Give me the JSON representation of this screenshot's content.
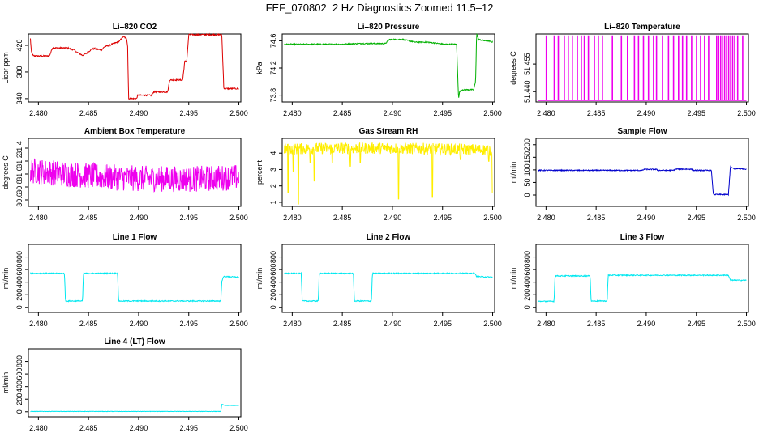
{
  "figure": {
    "title": "FEF_070802  2 Hz Diagnostics Zoomed 11.5–12"
  },
  "chart_data": [
    {
      "type": "line",
      "title": "Li–820 CO2",
      "ylabel": "Licor ppm",
      "xlabel": "",
      "xlim": [
        2.479,
        2.5002
      ],
      "ylim": [
        335,
        437
      ],
      "xticks": [
        "2.480",
        "2.485",
        "2.490",
        "2.495",
        "2.500"
      ],
      "xtick_values": [
        2.48,
        2.485,
        2.49,
        2.495,
        2.5
      ],
      "yticks": [
        "340",
        "380",
        "420"
      ],
      "ytick_values": [
        340,
        380,
        420
      ],
      "color": "#dd0000",
      "noise": 1,
      "series": [
        {
          "x": [
            2.4792,
            2.4793,
            2.4795,
            2.4797,
            2.4811,
            2.4814,
            2.4829,
            2.4833,
            2.4836,
            2.4838,
            2.4844,
            2.4848,
            2.4853,
            2.4856,
            2.4863,
            2.4866,
            2.4871,
            2.4874,
            2.4881,
            2.4883,
            2.4885,
            2.4888,
            2.4889,
            2.489,
            2.4898,
            2.4899,
            2.4913,
            2.4915,
            2.4929,
            2.4931,
            2.4944,
            2.4946,
            2.4948,
            2.495,
            2.4983,
            2.4985,
            2.5
          ],
          "y": [
            430,
            410,
            404,
            404,
            404,
            416,
            416,
            414,
            413,
            410,
            405,
            408,
            414,
            415,
            413,
            418,
            420,
            422,
            426,
            431,
            433,
            430,
            420,
            340,
            340,
            345,
            345,
            350,
            350,
            368,
            368,
            396,
            396,
            436,
            436,
            355,
            355
          ]
        }
      ]
    },
    {
      "type": "line",
      "title": "Li–820 Pressure",
      "ylabel": "kPa",
      "xlabel": "",
      "xlim": [
        2.479,
        2.5002
      ],
      "ylim": [
        73.7,
        74.7
      ],
      "xticks": [
        "2.480",
        "2.485",
        "2.490",
        "2.495",
        "2.500"
      ],
      "xtick_values": [
        2.48,
        2.485,
        2.49,
        2.495,
        2.5
      ],
      "yticks": [
        "73.8",
        "74.2",
        "74.6"
      ],
      "ytick_values": [
        73.8,
        74.2,
        74.6
      ],
      "color": "#00b000",
      "noise": 0.008,
      "series": [
        {
          "x": [
            2.4792,
            2.4849,
            2.4868,
            2.4893,
            2.4897,
            2.491,
            2.4923,
            2.4935,
            2.4952,
            2.4964,
            2.4966,
            2.4967,
            2.497,
            2.4981,
            2.4983,
            2.4984,
            2.4986,
            2.4992,
            2.4995,
            2.5
          ],
          "y": [
            74.55,
            74.55,
            74.56,
            74.56,
            74.62,
            74.62,
            74.58,
            74.58,
            74.55,
            74.55,
            73.75,
            73.85,
            73.88,
            73.88,
            74.0,
            74.7,
            74.62,
            74.6,
            74.6,
            74.58
          ]
        }
      ]
    },
    {
      "type": "line",
      "title": "Li–820 Temperature",
      "ylabel": "degrees C",
      "xlabel": "",
      "xlim": [
        2.479,
        2.5002
      ],
      "ylim": [
        51.4344,
        51.4713
      ],
      "xticks": [
        "2.480",
        "2.485",
        "2.490",
        "2.495",
        "2.500"
      ],
      "xtick_values": [
        2.48,
        2.485,
        2.49,
        2.495,
        2.5
      ],
      "yticks": [
        "51.440",
        "51.455"
      ],
      "ytick_values": [
        51.44,
        51.455
      ],
      "color": "#ee00ee",
      "noise": 0,
      "base": 51.4352,
      "high": 51.4703,
      "spikes": [
        2.48,
        2.4808,
        2.4812,
        2.4818,
        2.4822,
        2.4826,
        2.4831,
        2.4835,
        2.4838,
        2.4842,
        2.4848,
        2.4852,
        2.4856,
        2.4866,
        2.4875,
        2.4881,
        2.4888,
        2.4892,
        2.4897,
        2.4902,
        2.4907,
        2.491,
        2.4916,
        2.4922,
        2.4927,
        2.4932,
        2.4936,
        2.494,
        2.4945,
        2.495,
        2.4954,
        2.4958,
        2.4962,
        2.497,
        2.4972,
        2.4974,
        2.4976,
        2.4978,
        2.498,
        2.4982,
        2.4984,
        2.4986,
        2.4988,
        2.4991,
        2.4996
      ]
    },
    {
      "type": "line",
      "title": "Ambient Box Temperature",
      "ylabel": "degrees C",
      "xlabel": "",
      "xlim": [
        2.479,
        2.5002
      ],
      "ylim": [
        30.5,
        31.55
      ],
      "xticks": [
        "2.480",
        "2.485",
        "2.490",
        "2.495",
        "2.500"
      ],
      "xtick_values": [
        2.48,
        2.485,
        2.49,
        2.495,
        2.5
      ],
      "yticks": [
        "30.6",
        "30.8",
        "31.0",
        "31.2",
        "31.4"
      ],
      "ytick_values": [
        30.6,
        30.8,
        31.0,
        31.2,
        31.4
      ],
      "color": "#ee00ee",
      "noise": 0.2,
      "series": [
        {
          "x": [
            2.4792,
            2.483,
            2.487,
            2.49,
            2.495,
            2.5
          ],
          "y": [
            31.05,
            31.0,
            30.95,
            30.93,
            30.92,
            30.95
          ]
        }
      ]
    },
    {
      "type": "line",
      "title": "Gas Stream RH",
      "ylabel": "percent",
      "xlabel": "",
      "xlim": [
        2.479,
        2.5002
      ],
      "ylim": [
        0.75,
        4.9
      ],
      "xticks": [
        "2.480",
        "2.485",
        "2.490",
        "2.495",
        "2.500"
      ],
      "xtick_values": [
        2.48,
        2.485,
        2.49,
        2.495,
        2.5
      ],
      "yticks": [
        "1",
        "2",
        "3",
        "4"
      ],
      "ytick_values": [
        1,
        2,
        3,
        4
      ],
      "color": "#ffee00",
      "noise": 0.35,
      "series": [
        {
          "x": [
            2.4792,
            2.485,
            2.49,
            2.495,
            2.5
          ],
          "y": [
            4.25,
            4.3,
            4.3,
            4.25,
            4.2
          ]
        }
      ],
      "dips": [
        [
          2.4796,
          1.6
        ],
        [
          2.4801,
          2.9
        ],
        [
          2.4806,
          0.9
        ],
        [
          2.4818,
          3.4
        ],
        [
          2.4822,
          2.3
        ],
        [
          2.484,
          3.4
        ],
        [
          2.4858,
          3.2
        ],
        [
          2.4868,
          3.4
        ],
        [
          2.4906,
          1.2
        ],
        [
          2.494,
          1.3
        ],
        [
          2.4968,
          3.6
        ],
        [
          2.4996,
          3.5
        ],
        [
          2.5,
          1.6
        ]
      ]
    },
    {
      "type": "line",
      "title": "Sample Flow",
      "ylabel": "ml/min",
      "xlabel": "",
      "xlim": [
        2.479,
        2.5002
      ],
      "ylim": [
        -45,
        225
      ],
      "xticks": [
        "2.480",
        "2.485",
        "2.490",
        "2.495",
        "2.500"
      ],
      "xtick_values": [
        2.48,
        2.485,
        2.49,
        2.495,
        2.5
      ],
      "yticks": [
        "0",
        "50",
        "100",
        "150",
        "200"
      ],
      "ytick_values": [
        0,
        50,
        100,
        150,
        200
      ],
      "color": "#0000cc",
      "noise": 2,
      "series": [
        {
          "x": [
            2.4792,
            2.4896,
            2.4898,
            2.491,
            2.4912,
            2.4927,
            2.4929,
            2.4945,
            2.4947,
            2.4965,
            2.4967,
            2.4982,
            2.4984,
            2.4988,
            2.499,
            2.5
          ],
          "y": [
            98,
            98,
            102,
            102,
            98,
            98,
            103,
            103,
            98,
            98,
            2,
            2,
            112,
            103,
            105,
            103
          ]
        }
      ]
    },
    {
      "type": "line",
      "title": "Line 1 Flow",
      "ylabel": "ml/min",
      "xlabel": "",
      "xlim": [
        2.479,
        2.5002
      ],
      "ylim": [
        -80,
        1000
      ],
      "xticks": [
        "2.480",
        "2.485",
        "2.490",
        "2.495",
        "2.500"
      ],
      "xtick_values": [
        2.48,
        2.485,
        2.49,
        2.495,
        2.5
      ],
      "yticks": [
        "0",
        "200",
        "400",
        "600",
        "800"
      ],
      "ytick_values": [
        0,
        200,
        400,
        600,
        800
      ],
      "color": "#00e8f0",
      "noise": 8,
      "series": [
        {
          "x": [
            2.4792,
            2.4826,
            2.4827,
            2.4844,
            2.4845,
            2.4879,
            2.488,
            2.4982,
            2.4983,
            2.4985,
            2.5
          ],
          "y": [
            540,
            540,
            100,
            100,
            540,
            540,
            100,
            100,
            420,
            490,
            480
          ]
        }
      ]
    },
    {
      "type": "line",
      "title": "Line 2 Flow",
      "ylabel": "ml/min",
      "xlabel": "",
      "xlim": [
        2.479,
        2.5002
      ],
      "ylim": [
        -80,
        1000
      ],
      "xticks": [
        "2.480",
        "2.485",
        "2.490",
        "2.495",
        "2.500"
      ],
      "xtick_values": [
        2.48,
        2.485,
        2.49,
        2.495,
        2.5
      ],
      "yticks": [
        "0",
        "200",
        "400",
        "600",
        "800"
      ],
      "ytick_values": [
        0,
        200,
        400,
        600,
        800
      ],
      "color": "#00e8f0",
      "noise": 8,
      "series": [
        {
          "x": [
            2.4792,
            2.4809,
            2.481,
            2.4826,
            2.4827,
            2.4861,
            2.4862,
            2.4879,
            2.488,
            2.4982,
            2.4984,
            2.5
          ],
          "y": [
            540,
            540,
            100,
            100,
            540,
            540,
            100,
            100,
            540,
            540,
            490,
            480
          ]
        }
      ]
    },
    {
      "type": "line",
      "title": "Line 3 Flow",
      "ylabel": "ml/min",
      "xlabel": "",
      "xlim": [
        2.479,
        2.5002
      ],
      "ylim": [
        -80,
        1000
      ],
      "xticks": [
        "2.480",
        "2.485",
        "2.490",
        "2.495",
        "2.500"
      ],
      "xtick_values": [
        2.48,
        2.485,
        2.49,
        2.495,
        2.5
      ],
      "yticks": [
        "0",
        "200",
        "400",
        "600",
        "800"
      ],
      "ytick_values": [
        0,
        200,
        400,
        600,
        800
      ],
      "color": "#00e8f0",
      "noise": 8,
      "series": [
        {
          "x": [
            2.4792,
            2.4808,
            2.4809,
            2.4844,
            2.4845,
            2.4861,
            2.4862,
            2.4982,
            2.4984,
            2.5
          ],
          "y": [
            95,
            95,
            500,
            500,
            100,
            100,
            510,
            510,
            430,
            430
          ]
        }
      ]
    },
    {
      "type": "line",
      "title": "Line 4 (LT) Flow",
      "ylabel": "ml/min",
      "xlabel": "",
      "xlim": [
        2.479,
        2.5002
      ],
      "ylim": [
        -80,
        1000
      ],
      "xticks": [
        "2.480",
        "2.485",
        "2.490",
        "2.495",
        "2.500"
      ],
      "xtick_values": [
        2.48,
        2.485,
        2.49,
        2.495,
        2.5
      ],
      "yticks": [
        "0",
        "200",
        "400",
        "600",
        "800"
      ],
      "ytick_values": [
        0,
        200,
        400,
        600,
        800
      ],
      "color": "#00e8f0",
      "noise": 3,
      "series": [
        {
          "x": [
            2.4792,
            2.4982,
            2.4983,
            2.4986,
            2.5
          ],
          "y": [
            5,
            5,
            120,
            100,
            100
          ]
        }
      ]
    }
  ]
}
